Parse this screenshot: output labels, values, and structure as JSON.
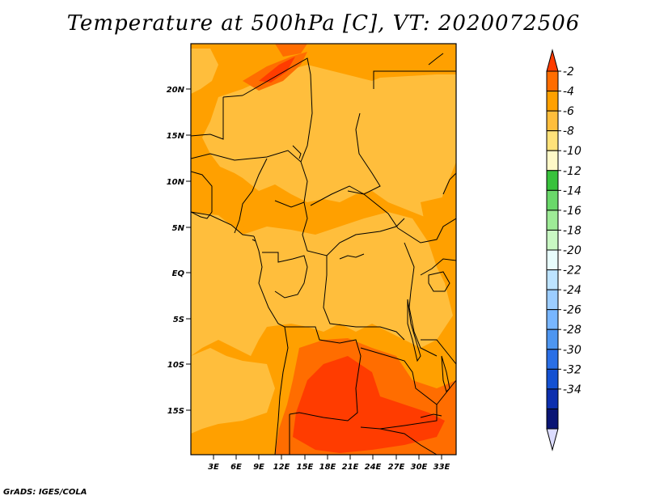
{
  "title": "Temperature at 500hPa [C], VT: 2020072506",
  "credit": "GrADS: IGES/COLA",
  "map": {
    "lat_labels": [
      "20N",
      "15N",
      "10N",
      "5N",
      "EQ",
      "5S",
      "10S",
      "15S"
    ],
    "lon_labels": [
      "3E",
      "6E",
      "9E",
      "12E",
      "15E",
      "18E",
      "21E",
      "24E",
      "27E",
      "30E",
      "33E"
    ],
    "lon_range": [
      0.5,
      35
    ],
    "lat_range": [
      -20,
      25
    ]
  },
  "colorbar": {
    "labels": [
      "-2",
      "-4",
      "-6",
      "-8",
      "-10",
      "-12",
      "-14",
      "-16",
      "-18",
      "-20",
      "-22",
      "-24",
      "-26",
      "-28",
      "-30",
      "-32",
      "-34"
    ],
    "colors": [
      "#ff3c00",
      "#ff6d00",
      "#ffa000",
      "#ffbe3c",
      "#ffe27a",
      "#fff9c8",
      "#38c23c",
      "#6ad86a",
      "#9eeb97",
      "#c9f7c3",
      "#e8fdfd",
      "#bde3ff",
      "#9ccdff",
      "#78b6ff",
      "#4e96f0",
      "#2a6fe6",
      "#1451d2",
      "#0d2fae",
      "#0a1575",
      "#dcdcff"
    ]
  }
}
